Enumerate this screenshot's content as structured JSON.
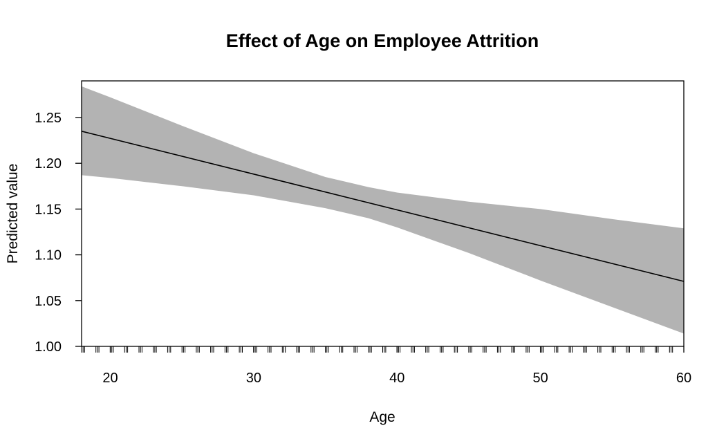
{
  "chart_data": {
    "type": "line",
    "title": "Effect of Age on Employee Attrition",
    "xlabel": "Age",
    "ylabel": "Predicted value",
    "xlim": [
      18,
      60
    ],
    "ylim": [
      1.0,
      1.29
    ],
    "x_ticks": [
      "20",
      "30",
      "40",
      "50",
      "60"
    ],
    "y_ticks": [
      "1.00",
      "1.05",
      "1.10",
      "1.15",
      "1.20",
      "1.25"
    ],
    "series": [
      {
        "x": [
          18,
          60
        ],
        "y": [
          1.235,
          1.071
        ]
      }
    ],
    "confidence_band": {
      "x": [
        18,
        20,
        25,
        30,
        35,
        38,
        40,
        45,
        50,
        55,
        60
      ],
      "lower": [
        1.187,
        1.184,
        1.175,
        1.165,
        1.151,
        1.14,
        1.13,
        1.102,
        1.072,
        1.043,
        1.014
      ],
      "upper": [
        1.284,
        1.272,
        1.241,
        1.211,
        1.185,
        1.174,
        1.168,
        1.158,
        1.15,
        1.139,
        1.129
      ]
    },
    "rug_ages": [
      18,
      19,
      20,
      21,
      22,
      23,
      24,
      25,
      26,
      27,
      28,
      29,
      30,
      31,
      32,
      33,
      34,
      35,
      36,
      37,
      38,
      39,
      40,
      41,
      42,
      43,
      44,
      45,
      46,
      47,
      48,
      49,
      50,
      51,
      52,
      53,
      54,
      55,
      56,
      57,
      58,
      59,
      60
    ],
    "grid": false,
    "legend": "none",
    "colors": {
      "line": "#000000",
      "band": "#b3b3b3",
      "axis": "#000000"
    }
  }
}
